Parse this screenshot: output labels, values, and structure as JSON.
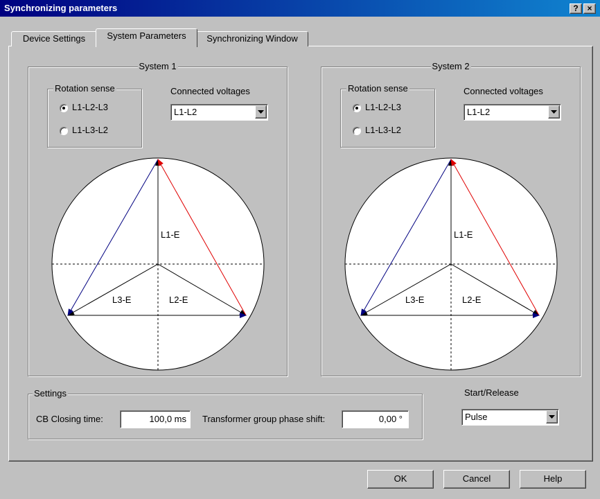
{
  "window": {
    "title": "Synchronizing parameters",
    "title_buttons": [
      "?",
      "×"
    ]
  },
  "tabs": [
    {
      "label": "Device Settings",
      "selected": false
    },
    {
      "label": "System Parameters",
      "selected": true
    },
    {
      "label": "Synchronizing Window",
      "selected": false
    }
  ],
  "systems": [
    {
      "title": "System 1",
      "rotation_sense": {
        "label": "Rotation sense",
        "options": [
          "L1-L2-L3",
          "L1-L3-L2"
        ],
        "selected": 0
      },
      "connected_voltages": {
        "label": "Connected voltages",
        "value": "L1-L2"
      },
      "phasors": [
        "L1-E",
        "L3-E",
        "L2-E"
      ]
    },
    {
      "title": "System 2",
      "rotation_sense": {
        "label": "Rotation sense",
        "options": [
          "L1-L2-L3",
          "L1-L3-L2"
        ],
        "selected": 0
      },
      "connected_voltages": {
        "label": "Connected voltages",
        "value": "L1-L2"
      },
      "phasors": [
        "L1-E",
        "L3-E",
        "L2-E"
      ]
    }
  ],
  "settings": {
    "title": "Settings",
    "cb_closing_time": {
      "label": "CB Closing time:",
      "value": "100,0 ms"
    },
    "phase_shift": {
      "label": "Transformer group phase shift:",
      "value": "0,00 °"
    }
  },
  "start_release": {
    "label": "Start/Release",
    "value": "Pulse"
  },
  "buttons": [
    "OK",
    "Cancel",
    "Help"
  ]
}
